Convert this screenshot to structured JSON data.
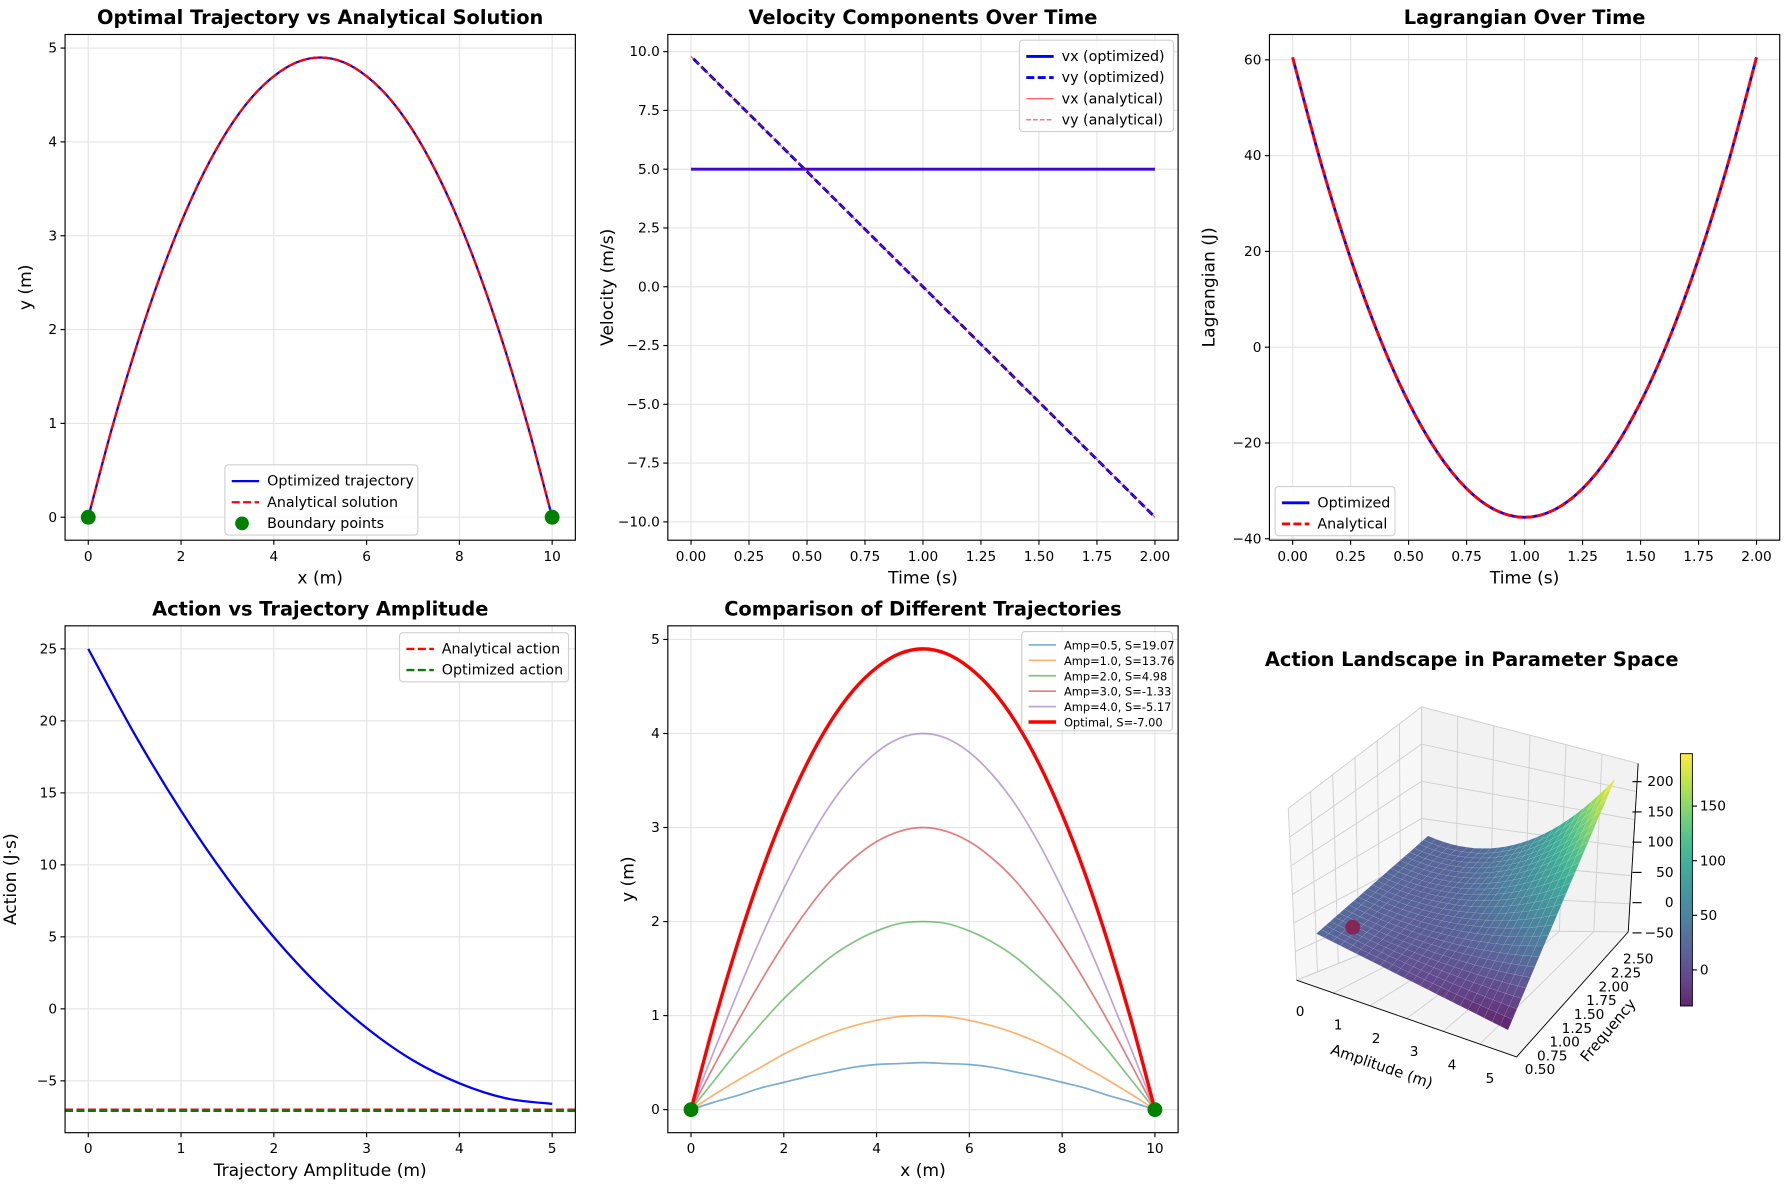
{
  "chart_data": [
    {
      "type": "line",
      "title": "Optimal Trajectory vs Analytical Solution",
      "xlabel": "x (m)",
      "ylabel": "y (m)",
      "xlim": [
        -0.5,
        10.5
      ],
      "ylim": [
        -0.245,
        5.145
      ],
      "xticks": [
        0,
        2,
        4,
        6,
        8,
        10
      ],
      "xtick_labels": [
        "0",
        "2",
        "4",
        "6",
        "8",
        "10"
      ],
      "yticks": [
        0,
        1,
        2,
        3,
        4,
        5
      ],
      "ytick_labels": [
        "0",
        "1",
        "2",
        "3",
        "4",
        "5"
      ],
      "grid": true,
      "legend_position": "lower-center",
      "series": [
        {
          "name": "Optimized trajectory",
          "color": "#0000ff",
          "style": "solid",
          "width": 2,
          "x": [
            0,
            0.5,
            1,
            1.5,
            2,
            2.5,
            3,
            3.5,
            4,
            4.5,
            5,
            5.5,
            6,
            6.5,
            7,
            7.5,
            8,
            8.5,
            9,
            9.5,
            10
          ],
          "y": [
            0,
            0.93,
            1.76,
            2.5,
            3.14,
            3.68,
            4.12,
            4.46,
            4.7,
            4.85,
            4.9,
            4.85,
            4.7,
            4.46,
            4.12,
            3.68,
            3.14,
            2.5,
            1.76,
            0.93,
            0
          ]
        },
        {
          "name": "Analytical solution",
          "color": "#ff0000",
          "style": "dashed",
          "width": 2,
          "x": [
            0,
            0.5,
            1,
            1.5,
            2,
            2.5,
            3,
            3.5,
            4,
            4.5,
            5,
            5.5,
            6,
            6.5,
            7,
            7.5,
            8,
            8.5,
            9,
            9.5,
            10
          ],
          "y": [
            0,
            0.93,
            1.76,
            2.5,
            3.14,
            3.68,
            4.12,
            4.46,
            4.7,
            4.85,
            4.9,
            4.85,
            4.7,
            4.46,
            4.12,
            3.68,
            3.14,
            2.5,
            1.76,
            0.93,
            0
          ]
        },
        {
          "name": "Boundary points",
          "color": "#008000",
          "style": "marker",
          "x": [
            0,
            10
          ],
          "y": [
            0,
            0
          ]
        }
      ]
    },
    {
      "type": "line",
      "title": "Velocity Components Over Time",
      "xlabel": "Time (s)",
      "ylabel": "Velocity (m/s)",
      "xlim": [
        -0.1,
        2.1
      ],
      "ylim": [
        -10.78,
        10.73
      ],
      "xticks": [
        0,
        0.25,
        0.5,
        0.75,
        1,
        1.25,
        1.5,
        1.75,
        2
      ],
      "xtick_labels": [
        "0.00",
        "0.25",
        "0.50",
        "0.75",
        "1.00",
        "1.25",
        "1.50",
        "1.75",
        "2.00"
      ],
      "yticks": [
        -10,
        -7.5,
        -5,
        -2.5,
        0,
        2.5,
        5,
        7.5,
        10
      ],
      "ytick_labels": [
        "−10.0",
        "−7.5",
        "−5.0",
        "−2.5",
        "0.0",
        "2.5",
        "5.0",
        "7.5",
        "10.0"
      ],
      "grid": true,
      "legend_position": "upper-right",
      "series": [
        {
          "name": "vx (optimized)",
          "color": "#0000ff",
          "style": "solid",
          "width": 2.5,
          "x": [
            0,
            2
          ],
          "y": [
            5,
            5
          ]
        },
        {
          "name": "vy (optimized)",
          "color": "#0000ff",
          "style": "dashed",
          "width": 2.5,
          "x": [
            0.01,
            1.99
          ],
          "y": [
            9.7,
            -9.7
          ]
        },
        {
          "name": "vx (analytical)",
          "color": "#ff0000",
          "style": "solid",
          "width": 1,
          "opacity": 0.7,
          "x": [
            0,
            2
          ],
          "y": [
            5,
            5
          ]
        },
        {
          "name": "vy (analytical)",
          "color": "#ff0000",
          "style": "dashed",
          "width": 1,
          "opacity": 0.7,
          "x": [
            0,
            2
          ],
          "y": [
            9.8,
            -9.8
          ]
        }
      ]
    },
    {
      "type": "line",
      "title": "Lagrangian Over Time",
      "xlabel": "Time (s)",
      "ylabel": "Lagrangian (J)",
      "xlim": [
        -0.1,
        2.1
      ],
      "ylim": [
        -40.3,
        65.3
      ],
      "xticks": [
        0,
        0.25,
        0.5,
        0.75,
        1,
        1.25,
        1.5,
        1.75,
        2
      ],
      "xtick_labels": [
        "0.00",
        "0.25",
        "0.50",
        "0.75",
        "1.00",
        "1.25",
        "1.50",
        "1.75",
        "2.00"
      ],
      "yticks": [
        -40,
        -20,
        0,
        20,
        40,
        60
      ],
      "ytick_labels": [
        "−40",
        "−20",
        "0",
        "20",
        "40",
        "60"
      ],
      "grid": true,
      "legend_position": "lower-left",
      "series": [
        {
          "name": "Optimized",
          "color": "#0000ff",
          "style": "solid",
          "width": 2.5,
          "x": [
            0,
            0.125,
            0.25,
            0.375,
            0.5,
            0.625,
            0.75,
            0.875,
            1,
            1.125,
            1.25,
            1.375,
            1.5,
            1.625,
            1.75,
            1.875,
            2
          ],
          "y": [
            60.52,
            38.0,
            18.5,
            2.0,
            -11.51,
            -22.02,
            -29.52,
            -34.02,
            -35.52,
            -34.02,
            -29.52,
            -22.02,
            -11.51,
            2.0,
            18.5,
            38.0,
            60.52
          ]
        },
        {
          "name": "Analytical",
          "color": "#ff0000",
          "style": "dashed",
          "width": 2.5,
          "x": [
            0,
            0.125,
            0.25,
            0.375,
            0.5,
            0.625,
            0.75,
            0.875,
            1,
            1.125,
            1.25,
            1.375,
            1.5,
            1.625,
            1.75,
            1.875,
            2
          ],
          "y": [
            60.52,
            38.0,
            18.5,
            2.0,
            -11.51,
            -22.02,
            -29.52,
            -34.02,
            -35.52,
            -34.02,
            -29.52,
            -22.02,
            -11.51,
            2.0,
            18.5,
            38.0,
            60.52
          ]
        }
      ]
    },
    {
      "type": "line",
      "title": "Action vs Trajectory Amplitude",
      "xlabel": "Trajectory Amplitude (m)",
      "ylabel": "Action (J·s)",
      "xlim": [
        -0.25,
        5.25
      ],
      "ylim": [
        -8.6,
        26.6
      ],
      "xticks": [
        0,
        1,
        2,
        3,
        4,
        5
      ],
      "xtick_labels": [
        "0",
        "1",
        "2",
        "3",
        "4",
        "5"
      ],
      "yticks": [
        -5,
        0,
        5,
        10,
        15,
        20,
        25
      ],
      "ytick_labels": [
        "−5",
        "0",
        "5",
        "10",
        "15",
        "20",
        "25"
      ],
      "grid": true,
      "legend_position": "upper-right",
      "series": [
        {
          "color": "#0000ff",
          "style": "solid",
          "width": 2,
          "x": [
            0,
            0.5,
            1,
            1.5,
            2,
            2.5,
            3,
            3.5,
            4,
            4.5,
            5
          ],
          "y": [
            25,
            19.07,
            13.76,
            9.06,
            4.98,
            1.51,
            -1.33,
            -3.58,
            -5.17,
            -6.21,
            -6.6
          ]
        },
        {
          "name": "Analytical action",
          "color": "#ff0000",
          "style": "dashed",
          "width": 2,
          "hline": -7.0
        },
        {
          "name": "Optimized action",
          "color": "#008000",
          "style": "dashed",
          "width": 2,
          "hline": -7.08
        }
      ]
    },
    {
      "type": "line",
      "title": "Comparison of Different Trajectories",
      "xlabel": "x (m)",
      "ylabel": "y (m)",
      "xlim": [
        -0.5,
        10.5
      ],
      "ylim": [
        -0.245,
        5.145
      ],
      "xticks": [
        0,
        2,
        4,
        6,
        8,
        10
      ],
      "xtick_labels": [
        "0",
        "2",
        "4",
        "6",
        "8",
        "10"
      ],
      "yticks": [
        0,
        1,
        2,
        3,
        4,
        5
      ],
      "ytick_labels": [
        "0",
        "1",
        "2",
        "3",
        "4",
        "5"
      ],
      "grid": true,
      "legend_position": "upper-right",
      "x": [
        0,
        0.5,
        1,
        1.5,
        2,
        2.5,
        3,
        3.5,
        4,
        4.5,
        5,
        5.5,
        6,
        6.5,
        7,
        7.5,
        8,
        8.5,
        9,
        9.5,
        10
      ],
      "series": [
        {
          "name": "Amp=0.5, S=19.07",
          "color": "#1f77b4",
          "opacity": 0.6,
          "width": 1.5,
          "y": [
            0,
            0.08,
            0.15,
            0.23,
            0.29,
            0.35,
            0.4,
            0.45,
            0.48,
            0.49,
            0.5,
            0.49,
            0.48,
            0.45,
            0.4,
            0.35,
            0.29,
            0.23,
            0.15,
            0.08,
            0
          ]
        },
        {
          "name": "Amp=1.0, S=13.76",
          "color": "#ff7f0e",
          "opacity": 0.6,
          "width": 1.5,
          "y": [
            0,
            0.16,
            0.31,
            0.45,
            0.59,
            0.71,
            0.81,
            0.89,
            0.95,
            0.99,
            1.0,
            0.99,
            0.95,
            0.89,
            0.81,
            0.71,
            0.59,
            0.45,
            0.31,
            0.16,
            0
          ]
        },
        {
          "name": "Amp=2.0, S=4.98",
          "color": "#2ca02c",
          "opacity": 0.6,
          "width": 1.5,
          "y": [
            0,
            0.31,
            0.62,
            0.91,
            1.18,
            1.41,
            1.62,
            1.78,
            1.9,
            1.98,
            2.0,
            1.98,
            1.9,
            1.78,
            1.62,
            1.41,
            1.18,
            0.91,
            0.62,
            0.31,
            0
          ]
        },
        {
          "name": "Amp=3.0, S=-1.33",
          "color": "#d62728",
          "opacity": 0.6,
          "width": 1.5,
          "y": [
            0,
            0.47,
            0.93,
            1.36,
            1.76,
            2.12,
            2.43,
            2.67,
            2.85,
            2.96,
            3.0,
            2.96,
            2.85,
            2.67,
            2.43,
            2.12,
            1.76,
            1.36,
            0.93,
            0.47,
            0
          ]
        },
        {
          "name": "Amp=4.0, S=-5.17",
          "color": "#9467bd",
          "opacity": 0.6,
          "width": 1.5,
          "y": [
            0,
            0.63,
            1.24,
            1.82,
            2.35,
            2.83,
            3.24,
            3.56,
            3.8,
            3.95,
            4.0,
            3.95,
            3.8,
            3.56,
            3.24,
            2.83,
            2.35,
            1.82,
            1.24,
            0.63,
            0
          ]
        },
        {
          "name": "Optimal, S=-7.00",
          "color": "#ff0000",
          "opacity": 1,
          "width": 3,
          "y": [
            0,
            0.93,
            1.76,
            2.5,
            3.14,
            3.68,
            4.12,
            4.46,
            4.7,
            4.85,
            4.9,
            4.85,
            4.7,
            4.46,
            4.12,
            3.68,
            3.14,
            2.5,
            1.76,
            0.93,
            0
          ]
        },
        {
          "color": "#008000",
          "style": "marker",
          "x": [
            0,
            10
          ],
          "yv": [
            0,
            0
          ]
        }
      ]
    },
    {
      "type": "surface3d",
      "title": "Action Landscape in Parameter Space",
      "xlabel": "Amplitude (m)",
      "ylabel": "Frequency",
      "xlim": [
        0,
        5
      ],
      "ylim": [
        0.5,
        2.5
      ],
      "zlim": [
        -50,
        200
      ],
      "xtick_labels": [
        "0",
        "1",
        "2",
        "3",
        "4",
        "5"
      ],
      "ytick_labels": [
        "0.50",
        "0.75",
        "1.00",
        "1.25",
        "1.50",
        "1.75",
        "2.00",
        "2.25",
        "2.50"
      ],
      "ztick_labels": [
        "−50",
        "0",
        "50",
        "100",
        "150",
        "200"
      ],
      "corner_values": {
        "amp0": 25,
        "amp5_freq0.5": -35,
        "amp5_freq2.5": 200
      },
      "colormap": "viridis",
      "colorbar": {
        "range": [
          -33,
          198
        ],
        "tick_labels": [
          "0",
          "50",
          "100",
          "150"
        ],
        "ticks": [
          0,
          50,
          100,
          150
        ]
      },
      "marker": {
        "amplitude": 0,
        "frequency": 0.5,
        "color": "#8b1a4a"
      }
    }
  ]
}
